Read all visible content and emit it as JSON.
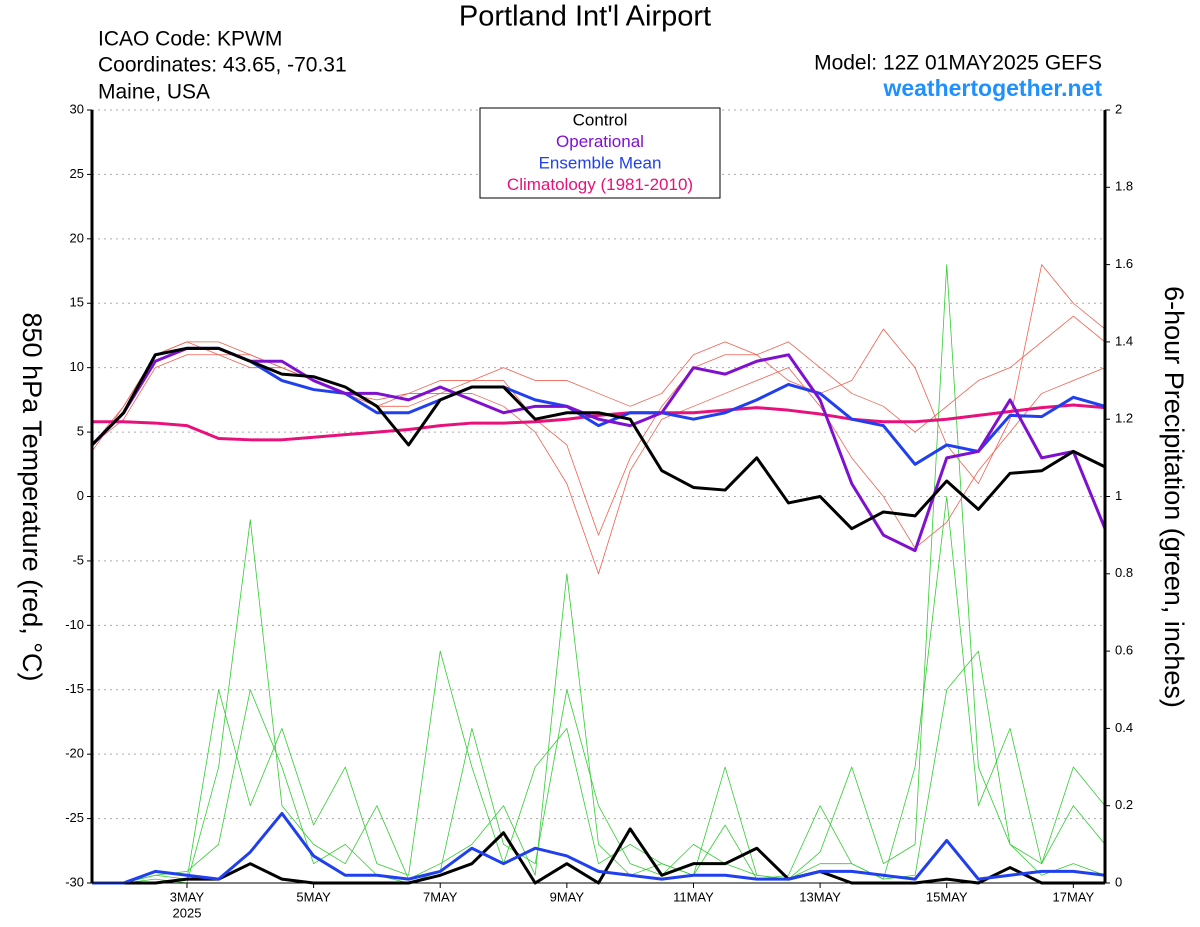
{
  "chart_data": {
    "type": "line",
    "title": "Portland Int'l Airport",
    "info_left": [
      "ICAO Code: KPWM",
      "Coordinates: 43.65, -70.31",
      "Maine, USA"
    ],
    "model": "Model: 12Z 01MAY2025 GEFS",
    "site": "weathertogether.net",
    "ylabel": "850 hPa Temperature (red, °C)",
    "y2label": "6-hour Precipitation (green, inches)",
    "year_label": "2025",
    "categories": [
      null,
      null,
      null,
      "3MAY",
      null,
      null,
      null,
      "5MAY",
      null,
      null,
      null,
      "7MAY",
      null,
      null,
      null,
      "9MAY",
      null,
      null,
      null,
      "11MAY",
      null,
      null,
      null,
      "13MAY",
      null,
      null,
      null,
      "15MAY",
      null,
      null,
      null,
      "17MAY",
      null
    ],
    "ylim": [
      -30,
      30
    ],
    "yticks": [
      -30,
      -25,
      -20,
      -15,
      -10,
      -5,
      0,
      5,
      10,
      15,
      20,
      25,
      30
    ],
    "y2lim": [
      0,
      2
    ],
    "y2ticks": [
      0,
      0.2,
      0.4,
      0.6,
      0.8,
      1,
      1.2,
      1.4,
      1.6,
      1.8,
      2
    ],
    "grid": true,
    "series": [
      {
        "color": "#f06050",
        "width": 0.8,
        "values": [
          3.5,
          7,
          11,
          12,
          11,
          10,
          10,
          9,
          8,
          7.5,
          8,
          8,
          9,
          9,
          6,
          4,
          -3,
          3,
          7,
          10,
          11,
          11,
          12,
          10,
          8,
          7,
          5,
          7,
          9,
          10,
          12,
          14,
          12
        ]
      },
      {
        "color": "#f06050",
        "width": 0.8,
        "values": [
          4,
          6,
          10,
          11,
          11,
          11,
          10,
          9,
          8,
          7,
          7,
          8,
          8,
          7,
          5,
          1,
          -6,
          2,
          6,
          7,
          8,
          9,
          10,
          7,
          3,
          0,
          -4,
          -2,
          2,
          5,
          8,
          9,
          10
        ]
      },
      {
        "color": "#f06050",
        "width": 0.8,
        "values": [
          4,
          7,
          11,
          12,
          12,
          11,
          10,
          9,
          8,
          7,
          8,
          9,
          9,
          10,
          9,
          9,
          8,
          7,
          8,
          11,
          12,
          11,
          9,
          8,
          9,
          13,
          10,
          4,
          1,
          6,
          18,
          15,
          13
        ]
      },
      {
        "color": "#33cc33",
        "width": 0.8,
        "axis": "y2",
        "values": [
          0,
          0,
          0.02,
          0.03,
          0.1,
          0.5,
          0.3,
          0.05,
          0.1,
          0.02,
          0,
          0.03,
          0.4,
          0.1,
          0.05,
          0.5,
          0.2,
          0.05,
          0.02,
          0.1,
          0.05,
          0.02,
          0.01,
          0.08,
          0.3,
          0.05,
          0.1,
          1.6,
          0.3,
          0.1,
          0.05,
          0.2,
          0.1
        ]
      },
      {
        "color": "#33cc33",
        "width": 0.8,
        "axis": "y2",
        "values": [
          0,
          0,
          0.01,
          0,
          0.3,
          0.94,
          0.2,
          0.1,
          0.05,
          0.2,
          0.01,
          0.05,
          0.1,
          0.2,
          0.02,
          0.8,
          0.1,
          0.02,
          0.05,
          0.02,
          0.15,
          0.01,
          0.02,
          0.2,
          0.05,
          0.01,
          0.02,
          0.5,
          0.6,
          0.1,
          0.02,
          0.05,
          0.02
        ]
      },
      {
        "color": "#33cc33",
        "width": 0.8,
        "axis": "y2",
        "values": [
          0,
          0,
          0.02,
          0.01,
          0.5,
          0.2,
          0.4,
          0.15,
          0.3,
          0.05,
          0.02,
          0.6,
          0.3,
          0.05,
          0.3,
          0.4,
          0.05,
          0.1,
          0.05,
          0.02,
          0.3,
          0.02,
          0.01,
          0.05,
          0.05,
          0.01,
          0.3,
          1.0,
          0.2,
          0.4,
          0.05,
          0.3,
          0.2
        ]
      },
      {
        "color": "#000000",
        "width": 3,
        "axis": "y2",
        "values": [
          0,
          0,
          0,
          0.01,
          0.01,
          0.05,
          0.01,
          0,
          0,
          0,
          0,
          0.02,
          0.05,
          0.13,
          0,
          0.05,
          0,
          0.14,
          0.02,
          0.05,
          0.05,
          0.09,
          0.01,
          0.03,
          0,
          0,
          0,
          0.01,
          0,
          0.04,
          0,
          0,
          0
        ]
      },
      {
        "color": "#2040f0",
        "width": 3,
        "axis": "y2",
        "values": [
          0,
          0,
          0.03,
          0.02,
          0.01,
          0.08,
          0.18,
          0.07,
          0.02,
          0.02,
          0.01,
          0.03,
          0.09,
          0.05,
          0.09,
          0.07,
          0.03,
          0.02,
          0.01,
          0.02,
          0.02,
          0.01,
          0.01,
          0.03,
          0.03,
          0.02,
          0.01,
          0.11,
          0.01,
          0.02,
          0.03,
          0.03,
          0.02
        ]
      },
      {
        "name": "Climatology (1981-2010)",
        "color": "#e8107a",
        "width": 3,
        "values": [
          5.8,
          5.8,
          5.7,
          5.5,
          4.5,
          4.4,
          4.4,
          4.6,
          4.8,
          5.0,
          5.2,
          5.5,
          5.7,
          5.7,
          5.8,
          6.0,
          6.3,
          6.5,
          6.5,
          6.5,
          6.7,
          6.9,
          6.7,
          6.4,
          6.0,
          5.8,
          5.8,
          6.0,
          6.3,
          6.6,
          6.9,
          7.1,
          6.9
        ]
      },
      {
        "name": "Ensemble Mean",
        "color": "#2040f0",
        "width": 3,
        "values": [
          4,
          6.5,
          11,
          11.5,
          11.5,
          10.5,
          9,
          8.3,
          8,
          6.5,
          6.5,
          7.5,
          8.5,
          8.5,
          7.5,
          7,
          5.5,
          6.5,
          6.5,
          6,
          6.5,
          7.5,
          8.7,
          8,
          6,
          5.5,
          2.5,
          4,
          3.5,
          6.3,
          6.2,
          7.7,
          7
        ]
      },
      {
        "name": "Operational",
        "color": "#8010d0",
        "width": 3,
        "values": [
          4,
          6.5,
          10.5,
          11.5,
          11.5,
          10.5,
          10.5,
          9,
          8,
          8,
          7.5,
          8.5,
          7.5,
          6.5,
          7,
          7,
          6,
          5.5,
          6.5,
          10,
          9.5,
          10.5,
          11,
          7.5,
          1,
          -3,
          -4.2,
          3,
          3.5,
          7.5,
          3,
          3.5,
          -2.5
        ]
      },
      {
        "name": "Control",
        "color": "#000000",
        "width": 3,
        "values": [
          4,
          6.5,
          11,
          11.5,
          11.5,
          10.5,
          9.5,
          9.3,
          8.5,
          7,
          4,
          7.5,
          8.5,
          8.5,
          6,
          6.5,
          6.5,
          6,
          2,
          0.7,
          0.5,
          3,
          -0.5,
          0,
          -2.5,
          -1.2,
          -1.5,
          1.2,
          -1,
          1.8,
          2,
          3.5,
          2.3
        ]
      }
    ]
  }
}
